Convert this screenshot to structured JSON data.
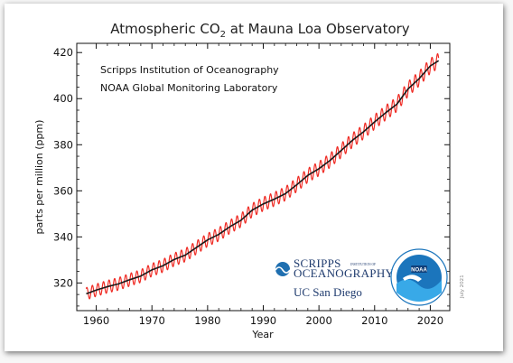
{
  "chart_data": {
    "type": "line",
    "title": "Atmospheric CO",
    "title_subscript": "2",
    "title_suffix": " at Mauna Loa Observatory",
    "xlabel": "Year",
    "ylabel": "parts per million (ppm)",
    "xlim": [
      1956.5,
      2023.5
    ],
    "ylim": [
      308,
      424
    ],
    "x_ticks": [
      1960,
      1970,
      1980,
      1990,
      2000,
      2010,
      2020
    ],
    "y_ticks": [
      320,
      340,
      360,
      380,
      400,
      420
    ],
    "annotations": [
      "Scripps Institution of Oceanography",
      "NOAA Global Monitoring Laboratory"
    ],
    "date_note": "July 2021",
    "grid": false,
    "series": [
      {
        "values_kind": "seasonally adjusted trend",
        "color": "#1a1a1a",
        "x": [
          1958.2,
          1960,
          1962,
          1964,
          1966,
          1968,
          1970,
          1972,
          1974,
          1976,
          1978,
          1980,
          1982,
          1984,
          1986,
          1988,
          1990,
          1992,
          1994,
          1996,
          1998,
          2000,
          2002,
          2004,
          2006,
          2008,
          2010,
          2012,
          2014,
          2016,
          2018,
          2020,
          2021.5
        ],
        "y": [
          315.3,
          316.9,
          318.4,
          319.6,
          321.4,
          323.0,
          325.7,
          327.5,
          330.2,
          332.1,
          335.4,
          338.7,
          341.1,
          344.4,
          347.2,
          351.6,
          354.3,
          356.4,
          358.8,
          362.6,
          366.7,
          369.6,
          373.2,
          377.5,
          381.9,
          385.6,
          389.9,
          393.9,
          397.6,
          404.2,
          408.7,
          414.2,
          416.5
        ]
      },
      {
        "values_kind": "monthly mean with seasonal cycle",
        "color": "#ef2b24",
        "seasonal_amplitude": [
          2.7,
          3.3
        ]
      }
    ]
  },
  "logos": {
    "scripps_line1": "SCRIPPS",
    "scripps_line2": "OCEANOGRAPHY",
    "scripps_small": "INSTITUTION OF",
    "ucsd": "UC San Diego",
    "noaa": "NOAA"
  },
  "colors": {
    "trend": "#1a1a1a",
    "monthly": "#ef2b24",
    "noaa_blue": "#1b75bc"
  }
}
